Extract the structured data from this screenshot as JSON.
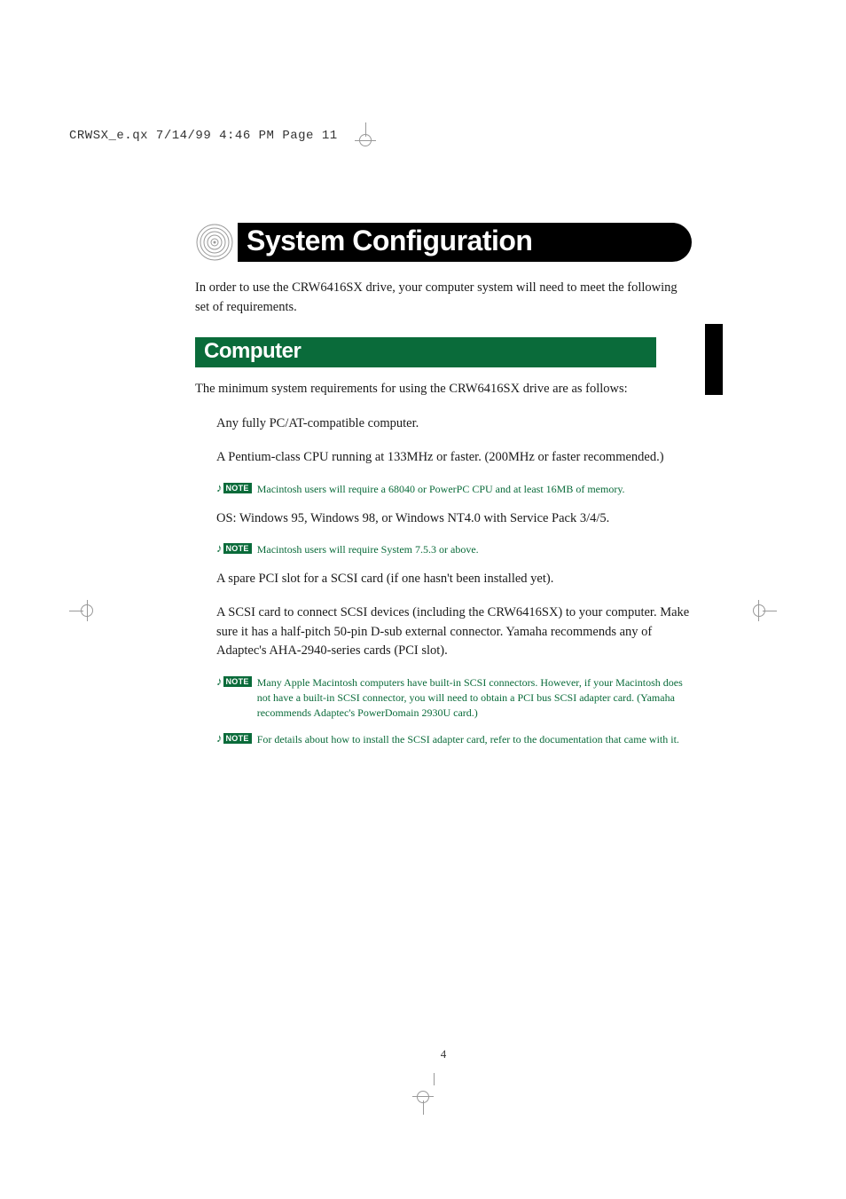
{
  "colors": {
    "green": "#0a6b3a",
    "black": "#000000",
    "text": "#1a1a1a",
    "white": "#ffffff"
  },
  "header": {
    "text": "CRWSX_e.qx  7/14/99  4:46 PM  Page 11"
  },
  "title": "System Configuration",
  "intro": "In order to use the CRW6416SX drive, your computer system will need to meet the following set of requirements.",
  "section": {
    "heading": "Computer",
    "lead": "The minimum system requirements for using the CRW6416SX drive are as follows:",
    "items": [
      {
        "type": "bullet",
        "text": "Any fully PC/AT-compatible computer."
      },
      {
        "type": "bullet",
        "text": "A Pentium-class CPU running at 133MHz or faster.  (200MHz or faster recommended.)"
      },
      {
        "type": "note",
        "text": "Macintosh users will require a 68040 or PowerPC CPU and at least 16MB of memory."
      },
      {
        "type": "bullet",
        "text": "OS: Windows 95, Windows 98, or Windows NT4.0 with Service Pack 3/4/5."
      },
      {
        "type": "note",
        "text": "Macintosh users will require System 7.5.3 or above."
      },
      {
        "type": "bullet",
        "text": "A spare PCI slot for a SCSI card (if one hasn't been installed yet)."
      },
      {
        "type": "bullet",
        "text": "A SCSI card to connect SCSI devices (including the CRW6416SX) to your computer.  Make sure it has a half-pitch 50-pin D-sub external connector.  Yamaha recommends any of Adaptec's AHA-2940-series cards (PCI slot)."
      },
      {
        "type": "note",
        "text": "Many Apple Macintosh computers have built-in SCSI connectors.  However, if your Macintosh does not have a built-in SCSI connector, you will need to obtain a PCI bus SCSI adapter card.  (Yamaha recommends Adaptec's PowerDomain 2930U card.)"
      },
      {
        "type": "note",
        "text": "For details about how to install the SCSI adapter card, refer to the documentation that came with it."
      }
    ]
  },
  "note_label": "NOTE",
  "page_number": "4"
}
